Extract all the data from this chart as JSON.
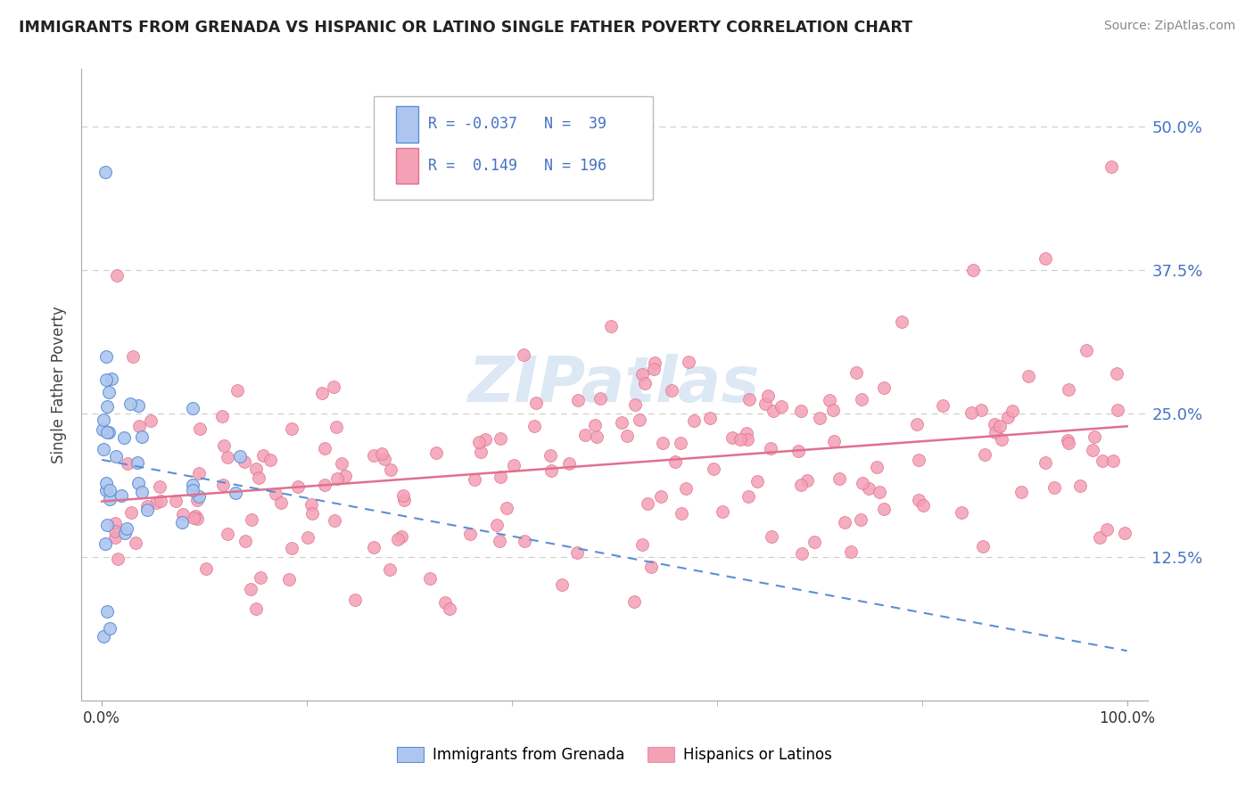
{
  "title": "IMMIGRANTS FROM GRENADA VS HISPANIC OR LATINO SINGLE FATHER POVERTY CORRELATION CHART",
  "source": "Source: ZipAtlas.com",
  "ylabel": "Single Father Poverty",
  "ytick_vals": [
    12.5,
    25.0,
    37.5,
    50.0
  ],
  "ytick_labels": [
    "12.5%",
    "25.0%",
    "37.5%",
    "50.0%"
  ],
  "xtick_vals": [
    0,
    100
  ],
  "xtick_labels": [
    "0.0%",
    "100.0%"
  ],
  "color_blue_fill": "#aec6ef",
  "color_blue_edge": "#5b8fd4",
  "color_pink_fill": "#f4a0b5",
  "color_pink_edge": "#e07090",
  "color_blue_line": "#5b8fd4",
  "color_pink_line": "#e07090",
  "watermark_color": "#dde8f5",
  "title_color": "#222222",
  "source_color": "#888888",
  "ylabel_color": "#444444",
  "tick_color": "#4472c4",
  "grid_color": "#cccccc",
  "legend_box_color": "#bbbbbb",
  "legend_text_color": "#4472c4",
  "legend_r1": "R = -0.037",
  "legend_n1": "N =  39",
  "legend_r2": "R =  0.149",
  "legend_n2": "N = 196",
  "xlim": [
    -2,
    102
  ],
  "ylim": [
    0,
    55
  ]
}
